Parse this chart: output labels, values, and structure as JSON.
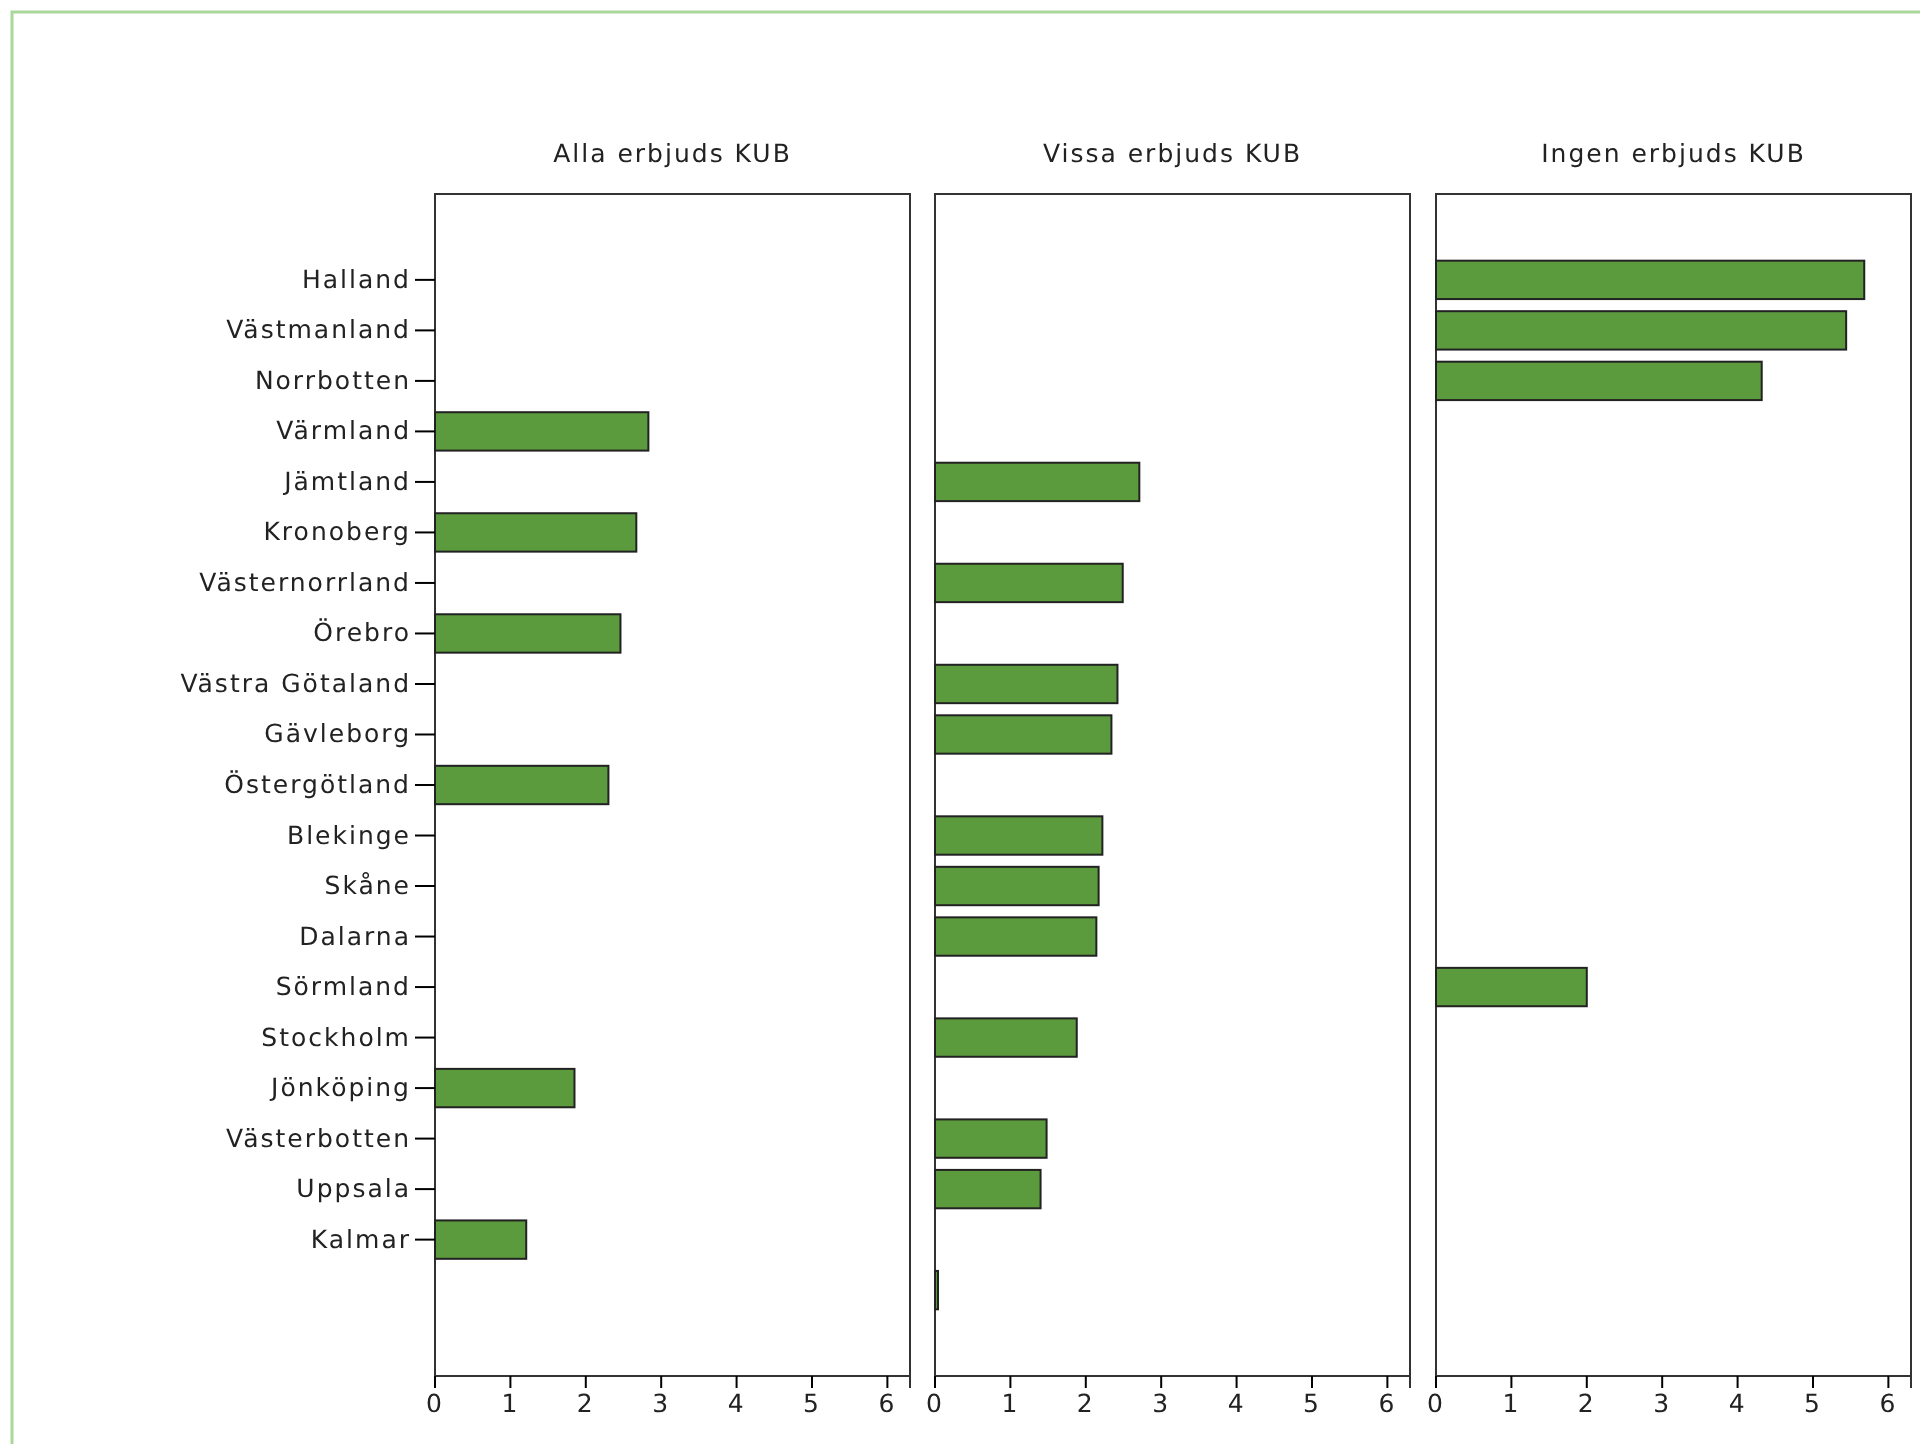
{
  "chart_data": [
    {
      "type": "bar",
      "orientation": "horizontal",
      "title": "Alla erbjuds KUB",
      "categories": [
        "Halland",
        "Västmanland",
        "Norrbotten",
        "Värmland",
        "Jämtland",
        "Kronoberg",
        "Västernorrland",
        "Örebro",
        "Västra Götaland",
        "Gävleborg",
        "Östergötland",
        "Blekinge",
        "Skåne",
        "Dalarna",
        "Sörmland",
        "Stockholm",
        "Jönköping",
        "Västerbotten",
        "Uppsala",
        "Kalmar",
        null
      ],
      "values": [
        null,
        null,
        null,
        2.83,
        null,
        2.67,
        null,
        2.46,
        null,
        null,
        2.3,
        null,
        null,
        null,
        null,
        null,
        1.85,
        null,
        null,
        1.21,
        null
      ],
      "color": "#5c9a3e",
      "xlim": [
        0,
        6.3
      ],
      "xticks": [
        0,
        1,
        2,
        3,
        4,
        5,
        6
      ]
    },
    {
      "type": "bar",
      "orientation": "horizontal",
      "title": "Vissa erbjuds KUB",
      "categories": [
        null,
        null,
        null,
        null,
        null,
        null,
        null,
        null,
        null,
        null,
        null,
        null,
        null,
        null,
        null,
        null,
        null,
        null,
        null,
        null,
        null
      ],
      "values": [
        null,
        null,
        null,
        null,
        2.71,
        null,
        2.49,
        null,
        2.42,
        2.34,
        null,
        2.22,
        2.17,
        2.14,
        null,
        1.88,
        null,
        1.48,
        1.4,
        null,
        0.04
      ],
      "color": "#5c9a3e",
      "xlim": [
        0,
        6.3
      ],
      "xticks": [
        0,
        1,
        2,
        3,
        4,
        5,
        6
      ],
      "tick_labels": "x"
    },
    {
      "type": "bar",
      "orientation": "horizontal",
      "title": "Ingen erbjuds KUB",
      "categories": [
        null,
        null,
        null,
        null,
        null,
        null,
        null,
        null,
        null,
        null,
        null,
        null,
        null,
        null,
        null,
        null,
        null,
        null,
        null,
        null,
        null
      ],
      "values": [
        5.68,
        5.44,
        4.32,
        null,
        null,
        null,
        null,
        null,
        null,
        null,
        null,
        null,
        null,
        null,
        2.0,
        null,
        null,
        null,
        null,
        null,
        null
      ],
      "color": "#5c9a3e",
      "xlim": [
        0,
        6.3
      ],
      "xticks": [
        0,
        1,
        2,
        3,
        4,
        5,
        6
      ],
      "tick_labels": "x"
    }
  ]
}
